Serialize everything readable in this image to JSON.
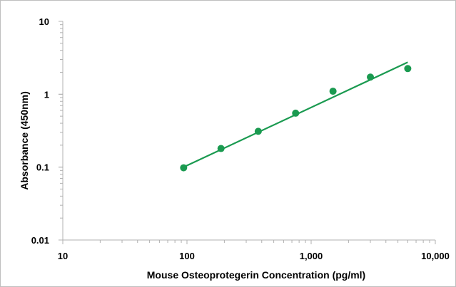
{
  "chart_data": {
    "type": "scatter",
    "title": "",
    "xlabel": "Mouse Osteoprotegerin Concentration (pg/ml)",
    "ylabel": "Absorbance (450nm)",
    "xscale": "log",
    "yscale": "log",
    "xlim": [
      10,
      10000
    ],
    "ylim": [
      0.01,
      10
    ],
    "x_tick_values": [
      10,
      100,
      1000,
      10000
    ],
    "x_tick_labels": [
      "10",
      "100",
      "1,000",
      "10,000"
    ],
    "y_tick_values": [
      0.01,
      0.1,
      1,
      10
    ],
    "y_tick_labels": [
      "0.01",
      "0.1",
      "1",
      "10"
    ],
    "grid": false,
    "legend": "none",
    "series": [
      {
        "type": "scatter",
        "color": "#1a9a50",
        "points": [
          {
            "x": 94,
            "y": 0.098
          },
          {
            "x": 188,
            "y": 0.18
          },
          {
            "x": 375,
            "y": 0.31
          },
          {
            "x": 750,
            "y": 0.55
          },
          {
            "x": 1500,
            "y": 1.1
          },
          {
            "x": 3000,
            "y": 1.72
          },
          {
            "x": 6000,
            "y": 2.25
          }
        ]
      },
      {
        "type": "line",
        "color": "#1a9a50",
        "points": [
          {
            "x": 94,
            "y": 0.1
          },
          {
            "x": 6000,
            "y": 2.75
          }
        ]
      }
    ]
  }
}
